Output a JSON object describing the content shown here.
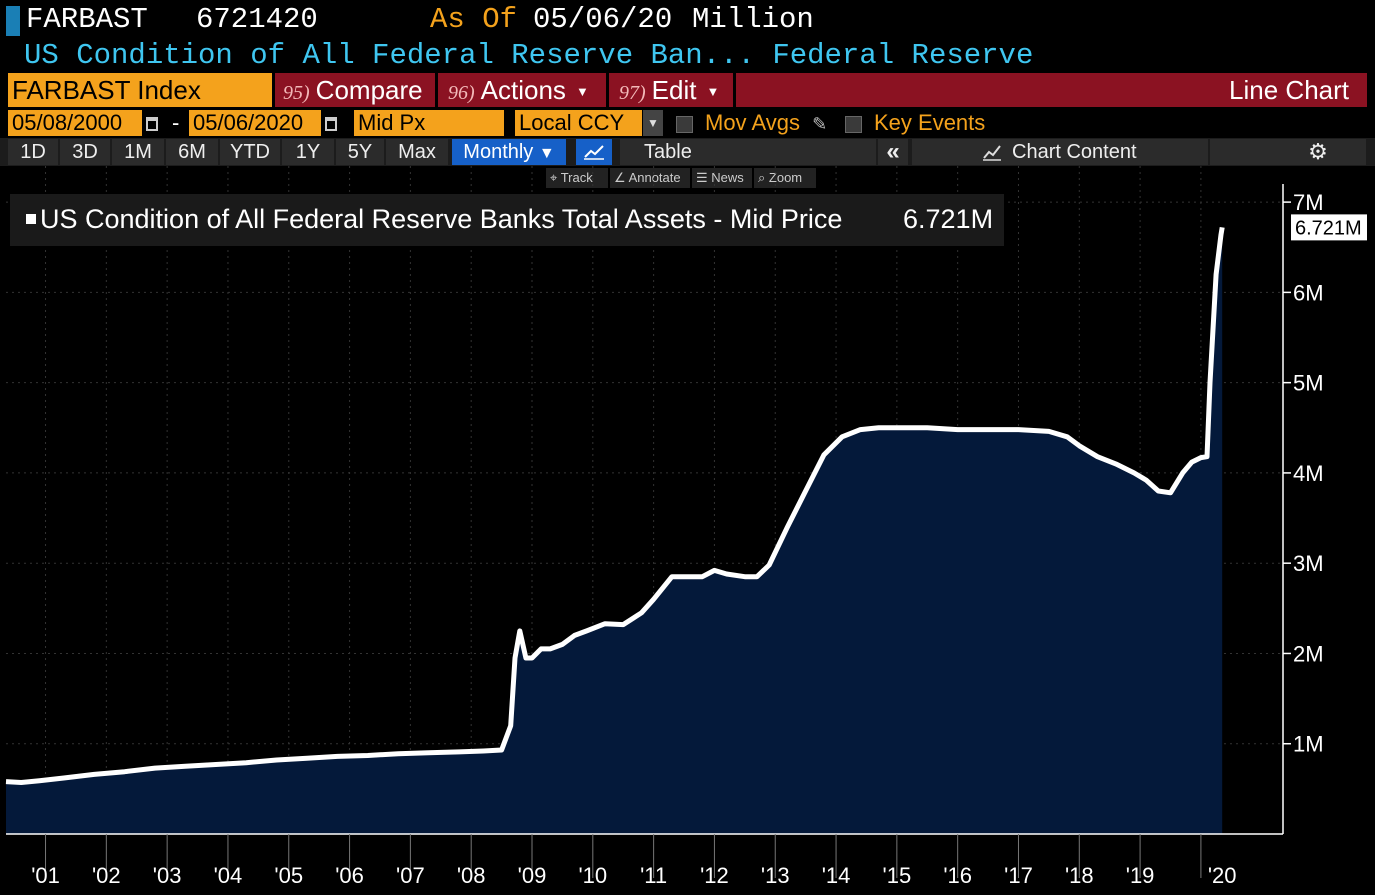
{
  "header": {
    "ticker": "FARBAST",
    "last_value": "6721420",
    "as_of_label": "As Of",
    "as_of_date": "05/06/20",
    "unit": "Million",
    "description": "US Condition of All Federal Reserve Ban... Federal Reserve"
  },
  "menu": {
    "security": "FARBAST Index",
    "compare_num": "95)",
    "compare_label": "Compare",
    "actions_num": "96)",
    "actions_label": "Actions",
    "edit_num": "97)",
    "edit_label": "Edit",
    "chart_type": "Line Chart"
  },
  "settings": {
    "start_date": "05/08/2000",
    "separator": "-",
    "end_date": "05/06/2020",
    "price_field": "Mid Px",
    "currency": "Local CCY",
    "mov_avgs": "Mov Avgs",
    "key_events": "Key Events"
  },
  "periods": [
    "1D",
    "3D",
    "1M",
    "6M",
    "YTD",
    "1Y",
    "5Y",
    "Max"
  ],
  "frequency": "Monthly",
  "table_label": "Table",
  "chart_content_label": "Chart Content",
  "tools": {
    "track": "Track",
    "annotate": "Annotate",
    "news": "News",
    "zoom": "Zoom"
  },
  "colors": {
    "background": "#000000",
    "area_fill": "#04193a",
    "line": "#ffffff",
    "accent_orange": "#f4a21c",
    "menu_red": "#8b1222",
    "title_cyan": "#3fc6f0",
    "selected_blue": "#1660c8"
  },
  "icons": [
    "calendar-icon",
    "pencil-icon",
    "line-chart-icon",
    "double-chevron-left-icon",
    "chart-content-icon",
    "gear-icon",
    "crosshair-icon",
    "annotate-icon",
    "news-icon",
    "zoom-icon",
    "caret-down-icon"
  ],
  "chart_data": {
    "type": "area",
    "legend_text": "US Condition of All Federal Reserve Banks Total Assets - Mid Price",
    "legend_value": "6.721M",
    "last_value_label": "6.721M",
    "x_tick_labels": [
      "'01",
      "'02",
      "'03",
      "'04",
      "'05",
      "'06",
      "'07",
      "'08",
      "'09",
      "'10",
      "'11",
      "'12",
      "'13",
      "'14",
      "'15",
      "'16",
      "'17",
      "'18",
      "'19",
      "'20"
    ],
    "y_tick_labels": [
      "1M",
      "2M",
      "3M",
      "4M",
      "5M",
      "6M",
      "7M"
    ],
    "y_ticks": [
      1,
      2,
      3,
      4,
      5,
      6,
      7
    ],
    "ylim": [
      0,
      7.4
    ],
    "xlim": [
      2000.35,
      2021.35
    ],
    "grid": true,
    "series": [
      {
        "x": [
          2000.35,
          2000.6,
          2000.9,
          2001.3,
          2001.8,
          2002.3,
          2002.8,
          2003.3,
          2003.8,
          2004.3,
          2004.8,
          2005.3,
          2005.8,
          2006.3,
          2006.8,
          2007.3,
          2007.8,
          2008.2,
          2008.5,
          2008.65,
          2008.72,
          2008.8,
          2008.9,
          2009.0,
          2009.15,
          2009.3,
          2009.5,
          2009.7,
          2009.9,
          2010.2,
          2010.5,
          2010.8,
          2011.0,
          2011.3,
          2011.5,
          2011.8,
          2012.0,
          2012.2,
          2012.5,
          2012.7,
          2012.9,
          2013.2,
          2013.5,
          2013.8,
          2014.1,
          2014.4,
          2014.7,
          2015.0,
          2015.5,
          2016.0,
          2016.5,
          2017.0,
          2017.5,
          2017.8,
          2018.0,
          2018.3,
          2018.6,
          2018.9,
          2019.1,
          2019.3,
          2019.5,
          2019.7,
          2019.85,
          2020.0,
          2020.1,
          2020.15,
          2020.25,
          2020.33,
          2020.35
        ],
        "y": [
          0.58,
          0.57,
          0.59,
          0.62,
          0.66,
          0.69,
          0.73,
          0.75,
          0.77,
          0.79,
          0.82,
          0.84,
          0.86,
          0.87,
          0.89,
          0.9,
          0.91,
          0.92,
          0.93,
          1.2,
          1.95,
          2.25,
          1.95,
          1.95,
          2.05,
          2.05,
          2.1,
          2.2,
          2.25,
          2.33,
          2.32,
          2.45,
          2.6,
          2.85,
          2.85,
          2.85,
          2.92,
          2.88,
          2.85,
          2.85,
          2.98,
          3.4,
          3.8,
          4.2,
          4.4,
          4.48,
          4.5,
          4.5,
          4.5,
          4.48,
          4.48,
          4.48,
          4.46,
          4.4,
          4.3,
          4.18,
          4.1,
          4.0,
          3.92,
          3.8,
          3.78,
          4.0,
          4.12,
          4.17,
          4.18,
          5.0,
          6.2,
          6.64,
          6.72
        ]
      }
    ]
  }
}
